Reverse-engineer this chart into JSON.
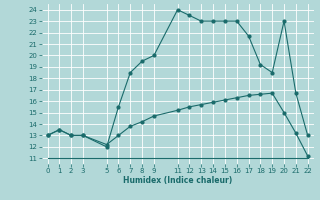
{
  "bg_color": "#b2d8d8",
  "grid_color": "#ffffff",
  "line_color": "#1a6b6b",
  "xlabel": "Humidex (Indice chaleur)",
  "xlim": [
    -0.5,
    22.5
  ],
  "ylim": [
    10.5,
    24.5
  ],
  "yticks": [
    11,
    12,
    13,
    14,
    15,
    16,
    17,
    18,
    19,
    20,
    21,
    22,
    23,
    24
  ],
  "xticks": [
    0,
    1,
    2,
    3,
    5,
    6,
    7,
    8,
    9,
    11,
    12,
    13,
    14,
    15,
    16,
    17,
    18,
    19,
    20,
    21,
    22
  ],
  "line1_x": [
    0,
    1,
    2,
    3,
    5,
    6,
    7,
    8,
    9,
    11,
    12,
    13,
    14,
    15,
    16,
    17,
    18,
    19,
    20,
    21,
    22
  ],
  "line1_y": [
    13,
    13.5,
    13,
    13,
    12,
    15.5,
    18.5,
    19.5,
    20,
    24,
    23.5,
    23,
    23,
    23,
    23,
    21.7,
    19.2,
    18.5,
    23,
    16.7,
    13
  ],
  "line2_x": [
    0,
    1,
    2,
    3,
    5,
    6,
    7,
    8,
    9,
    11,
    12,
    13,
    14,
    15,
    16,
    17,
    18,
    19,
    20,
    21,
    22
  ],
  "line2_y": [
    13,
    13.5,
    13,
    13,
    12.2,
    13,
    13.8,
    14.2,
    14.7,
    15.2,
    15.5,
    15.7,
    15.9,
    16.1,
    16.3,
    16.5,
    16.6,
    16.7,
    15.0,
    13.2,
    11.2
  ],
  "line3_x": [
    0,
    5,
    20,
    22
  ],
  "line3_y": [
    11,
    11,
    11,
    11
  ]
}
